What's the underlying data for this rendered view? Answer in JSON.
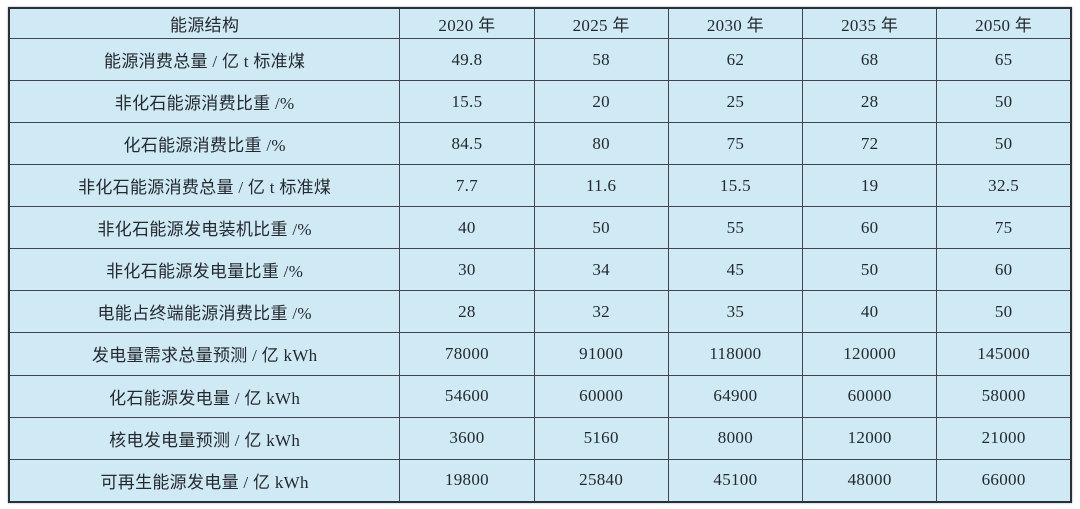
{
  "chart_data": {
    "type": "table",
    "corner_label": "能源结构",
    "columns": [
      "2020 年",
      "2025 年",
      "2030 年",
      "2035 年",
      "2050 年"
    ],
    "rows": [
      {
        "label": "能源消费总量 / 亿 t 标准煤",
        "values": [
          "49.8",
          "58",
          "62",
          "68",
          "65"
        ]
      },
      {
        "label": "非化石能源消费比重 /%",
        "values": [
          "15.5",
          "20",
          "25",
          "28",
          "50"
        ]
      },
      {
        "label": "化石能源消费比重 /%",
        "values": [
          "84.5",
          "80",
          "75",
          "72",
          "50"
        ]
      },
      {
        "label": "非化石能源消费总量 / 亿 t 标准煤",
        "values": [
          "7.7",
          "11.6",
          "15.5",
          "19",
          "32.5"
        ]
      },
      {
        "label": "非化石能源发电装机比重 /%",
        "values": [
          "40",
          "50",
          "55",
          "60",
          "75"
        ]
      },
      {
        "label": "非化石能源发电量比重 /%",
        "values": [
          "30",
          "34",
          "45",
          "50",
          "60"
        ]
      },
      {
        "label": "电能占终端能源消费比重 /%",
        "values": [
          "28",
          "32",
          "35",
          "40",
          "50"
        ]
      },
      {
        "label": "发电量需求总量预测 / 亿 kWh",
        "values": [
          "78000",
          "91000",
          "118000",
          "120000",
          "145000"
        ]
      },
      {
        "label": "化石能源发电量 / 亿 kWh",
        "values": [
          "54600",
          "60000",
          "64900",
          "60000",
          "58000"
        ]
      },
      {
        "label": "核电发电量预测 / 亿 kWh",
        "values": [
          "3600",
          "5160",
          "8000",
          "12000",
          "21000"
        ]
      },
      {
        "label": "可再生能源发电量 / 亿 kWh",
        "values": [
          "19800",
          "25840",
          "45100",
          "48000",
          "66000"
        ]
      }
    ]
  },
  "colors": {
    "cell_bg": "#cfe9f5",
    "grid_line": "#40464c",
    "outer_border": "#2b3036",
    "text": "#24292e",
    "page_bg": "#ffffff"
  }
}
